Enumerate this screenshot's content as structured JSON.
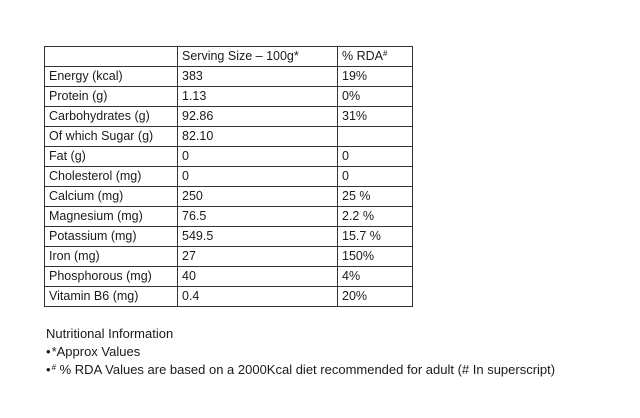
{
  "table": {
    "headers": {
      "item": "",
      "serving": "Serving Size – 100g*",
      "rda_label": "% RDA",
      "rda_mark": "#"
    },
    "rows": [
      {
        "nutrient": "Energy (kcal)",
        "serving": "383",
        "rda": "19%"
      },
      {
        "nutrient": "Protein (g)",
        "serving": "1.13",
        "rda": "0%"
      },
      {
        "nutrient": "Carbohydrates (g)",
        "serving": "92.86",
        "rda": "31%"
      },
      {
        "nutrient": "Of which Sugar (g)",
        "serving": "82.10",
        "rda": ""
      },
      {
        "nutrient": "Fat (g)",
        "serving": "0",
        "rda": "0"
      },
      {
        "nutrient": "Cholesterol (mg)",
        "serving": "0",
        "rda": "0"
      },
      {
        "nutrient": "Calcium (mg)",
        "serving": "250",
        "rda": "25 %"
      },
      {
        "nutrient": "Magnesium (mg)",
        "serving": "76.5",
        "rda": "2.2 %"
      },
      {
        "nutrient": "Potassium (mg)",
        "serving": "549.5",
        "rda": "15.7 %"
      },
      {
        "nutrient": "Iron (mg)",
        "serving": "27",
        "rda": "150%"
      },
      {
        "nutrient": "Phosphorous (mg)",
        "serving": "40",
        "rda": "4%"
      },
      {
        "nutrient": "Vitamin B6 (mg)",
        "serving": "0.4",
        "rda": "20%"
      }
    ]
  },
  "notes": {
    "heading": "Nutritional Information",
    "bullet": "•",
    "approx": "*Approx Values",
    "rda_mark": "#",
    "rda_note": " % RDA Values are based on a 2000Kcal diet recommended for adult  (# In superscript)"
  }
}
